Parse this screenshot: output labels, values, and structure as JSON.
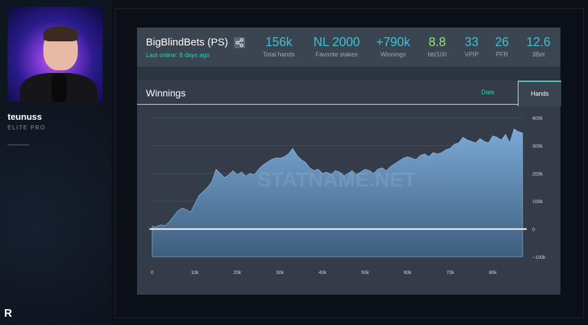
{
  "streamer": {
    "name": "teunuss",
    "title": "ELITE PRO",
    "logo": "R"
  },
  "profile": {
    "name": "BigBlindBets (PS)",
    "last_online": "Last online: 8 days ago",
    "stats": [
      {
        "value": "156k",
        "label": "Total hands",
        "color": "#3dc0d4"
      },
      {
        "value": "NL 2000",
        "label": "Favorite stakes",
        "color": "#3dc0d4"
      },
      {
        "value": "+790k",
        "label": "Winnings",
        "color": "#3dc0d4"
      },
      {
        "value": "8.8",
        "label": "bb/100",
        "color": "#8de67a"
      },
      {
        "value": "33",
        "label": "VPIP",
        "color": "#3dc0d4"
      },
      {
        "value": "26",
        "label": "PFR",
        "color": "#3dc0d4"
      },
      {
        "value": "12.6",
        "label": "3Bet",
        "color": "#3dc0d4"
      }
    ]
  },
  "panel": {
    "title": "Winnings",
    "tabs": {
      "date": "Date",
      "hands": "Hands"
    },
    "active_tab": "Hands"
  },
  "chart_data": {
    "type": "area",
    "title": "",
    "xlabel": "",
    "ylabel": "",
    "watermark": "STATNAME.NET",
    "x_ticks": [
      "0",
      "10k",
      "20k",
      "30k",
      "40k",
      "50k",
      "60k",
      "70k",
      "80k"
    ],
    "y_ticks": [
      "400k",
      "300k",
      "200k",
      "100k",
      "0",
      "−100k"
    ],
    "xlim": [
      0,
      87000
    ],
    "ylim": [
      -100000,
      400000
    ],
    "series": [
      {
        "x": [
          0,
          1000,
          2000,
          3000,
          4000,
          5000,
          6000,
          7000,
          8000,
          9000,
          10000,
          11000,
          12000,
          13000,
          14000,
          15000,
          16000,
          17000,
          18000,
          19000,
          20000,
          21000,
          22000,
          23000,
          24000,
          25000,
          26000,
          27000,
          28000,
          29000,
          30000,
          31000,
          32000,
          33000,
          34000,
          35000,
          36000,
          37000,
          38000,
          39000,
          40000,
          41000,
          42000,
          43000,
          44000,
          45000,
          46000,
          47000,
          48000,
          49000,
          50000,
          51000,
          52000,
          53000,
          54000,
          55000,
          56000,
          57000,
          58000,
          59000,
          60000,
          61000,
          62000,
          63000,
          64000,
          65000,
          66000,
          67000,
          68000,
          69000,
          70000,
          71000,
          72000,
          73000,
          74000,
          75000,
          76000,
          77000,
          78000,
          79000,
          80000,
          81000,
          82000,
          83000,
          84000,
          85000,
          86000,
          87000
        ],
        "values": [
          10000,
          8000,
          15000,
          12000,
          25000,
          45000,
          65000,
          75000,
          70000,
          60000,
          90000,
          120000,
          135000,
          150000,
          170000,
          215000,
          200000,
          185000,
          195000,
          210000,
          195000,
          205000,
          190000,
          200000,
          195000,
          215000,
          230000,
          240000,
          250000,
          255000,
          255000,
          260000,
          270000,
          290000,
          265000,
          250000,
          240000,
          220000,
          210000,
          215000,
          200000,
          205000,
          195000,
          210000,
          205000,
          190000,
          200000,
          210000,
          195000,
          205000,
          215000,
          210000,
          200000,
          215000,
          220000,
          210000,
          225000,
          235000,
          245000,
          255000,
          260000,
          255000,
          250000,
          265000,
          270000,
          260000,
          275000,
          270000,
          275000,
          285000,
          290000,
          305000,
          310000,
          330000,
          320000,
          315000,
          310000,
          325000,
          315000,
          310000,
          335000,
          330000,
          320000,
          340000,
          310000,
          360000,
          350000,
          345000
        ]
      }
    ],
    "baseline": 0,
    "grid": true,
    "colors": {
      "fill_top": "#7ba9d6",
      "fill_bottom": "#3e5d7d",
      "baseline": "#ffffff"
    }
  }
}
